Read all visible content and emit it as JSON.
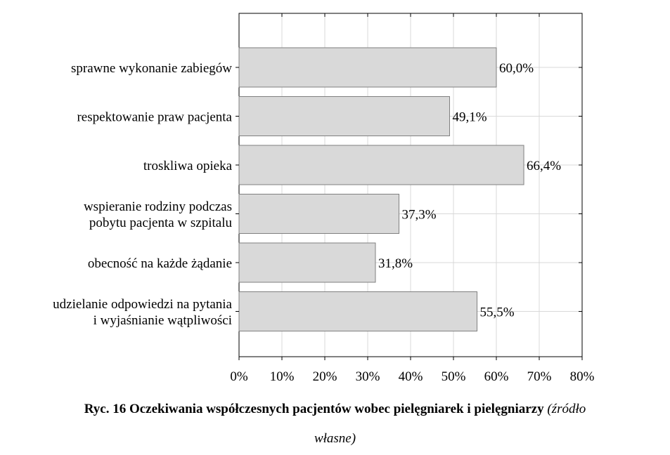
{
  "chart_data": {
    "type": "bar",
    "orientation": "horizontal",
    "categories": [
      [
        "sprawne wykonanie zabiegów"
      ],
      [
        "respektowanie praw pacjenta"
      ],
      [
        "troskliwa opieka"
      ],
      [
        "wspieranie rodziny podczas",
        "pobytu pacjenta w szpitalu"
      ],
      [
        "obecność na każde żądanie"
      ],
      [
        "udzielanie odpowiedzi na pytania",
        "i wyjaśnianie wątpliwości"
      ]
    ],
    "values": [
      60.0,
      49.1,
      66.4,
      37.3,
      31.8,
      55.5
    ],
    "value_labels": [
      "60,0%",
      "49,1%",
      "66,4%",
      "37,3%",
      "31,8%",
      "55,5%"
    ],
    "xlim": [
      0,
      80
    ],
    "xticks": [
      0,
      10,
      20,
      30,
      40,
      50,
      60,
      70,
      80
    ],
    "xtick_labels": [
      "0%",
      "10%",
      "20%",
      "30%",
      "40%",
      "50%",
      "60%",
      "70%",
      "80%"
    ],
    "grid": true,
    "bar_color": "#d9d9d9",
    "bar_edge_color": "#7f7f7f"
  },
  "caption": {
    "bold": "Ryc. 16 Oczekiwania współczesnych pacjentów wobec pielęgniarek i pielęgniarzy",
    "italic_part1": "(źródło",
    "italic_part2": "własne)"
  }
}
